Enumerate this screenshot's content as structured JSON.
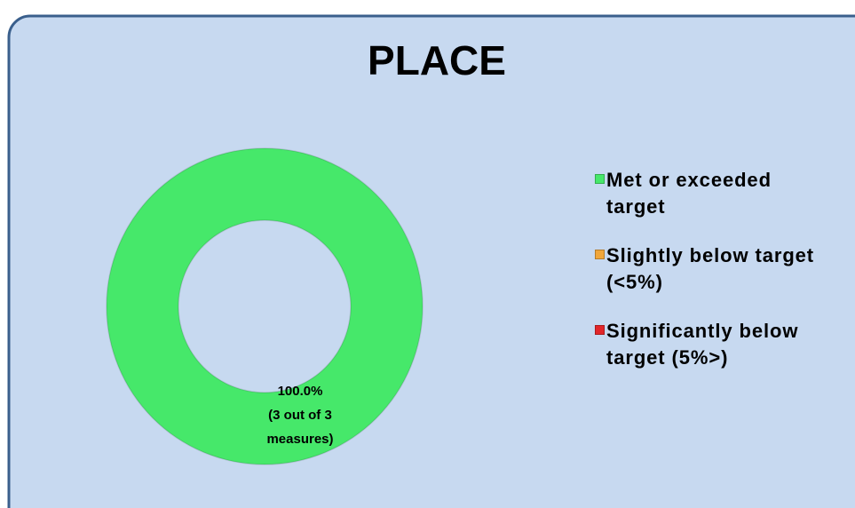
{
  "chart_data": {
    "type": "pie",
    "donut": true,
    "title": "PLACE",
    "categories": [
      "Met or exceeded\ntarget",
      "Slightly below target\n(<5%)",
      "Significantly below\ntarget (5%>)"
    ],
    "values": [
      100,
      0,
      0
    ],
    "value_labels": [
      "100.0%\n(3 out of 3\nmeasures)",
      null,
      null
    ],
    "colors": [
      "#46e86a",
      "#f0a63a",
      "#e2262a"
    ],
    "legend": "right"
  }
}
